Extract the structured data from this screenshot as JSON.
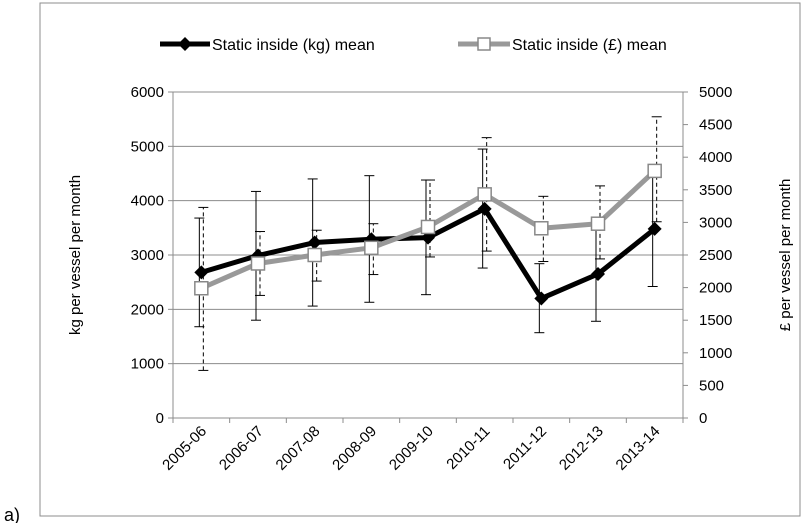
{
  "panel_label": "a)",
  "chart_data": {
    "type": "line",
    "categories": [
      "2005-06",
      "2006-07",
      "2007-08",
      "2008-09",
      "2009-10",
      "2010-11",
      "2011-12",
      "2012-13",
      "2013-14"
    ],
    "legend_position": "top",
    "grid": true,
    "y_left": {
      "label": "kg per vessel per month",
      "range": [
        0,
        6000
      ],
      "ticks": [
        0,
        1000,
        2000,
        3000,
        4000,
        5000,
        6000
      ]
    },
    "y_right": {
      "label": "£ per vessel per month",
      "range": [
        0,
        5000
      ],
      "ticks": [
        0,
        500,
        1000,
        1500,
        2000,
        2500,
        3000,
        3500,
        4000,
        4500,
        5000
      ]
    },
    "series": [
      {
        "name": "Static inside (kg) mean",
        "axis": "left",
        "color": "#000000",
        "marker": "diamond",
        "values": [
          2680,
          2990,
          3230,
          3290,
          3320,
          3850,
          2200,
          2650,
          3480
        ],
        "error_low": [
          1680,
          1800,
          2060,
          2130,
          2270,
          2760,
          1570,
          1780,
          2420
        ],
        "error_high": [
          3680,
          4170,
          4400,
          4460,
          4380,
          4950,
          2840,
          3560,
          4560
        ]
      },
      {
        "name": "Static inside (£) mean",
        "axis": "right",
        "color": "#999999",
        "marker": "square",
        "values": [
          1990,
          2370,
          2500,
          2610,
          2930,
          3430,
          2910,
          2980,
          3790
        ],
        "error_low": [
          730,
          1880,
          2100,
          2200,
          2470,
          2560,
          2400,
          2440,
          3010
        ],
        "error_high": [
          3230,
          2860,
          2880,
          2980,
          3650,
          4300,
          3400,
          3560,
          4620
        ]
      }
    ]
  }
}
